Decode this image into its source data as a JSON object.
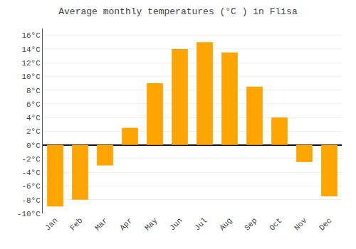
{
  "chart_data": {
    "type": "bar",
    "title": "Average monthly temperatures (°C ) in Flisa",
    "categories": [
      "Jan",
      "Feb",
      "Mar",
      "Apr",
      "May",
      "Jun",
      "Jul",
      "Aug",
      "Sep",
      "Oct",
      "Nov",
      "Dec"
    ],
    "values": [
      -9,
      -8,
      -3,
      2.5,
      9,
      14,
      15,
      13.5,
      8.5,
      4,
      -2.5,
      -7.5
    ],
    "color": "#FFA500",
    "ylim": [
      -10,
      17
    ],
    "yticks": [
      {
        "value": -10,
        "label": "-10°C"
      },
      {
        "value": -8,
        "label": "-8°C"
      },
      {
        "value": -6,
        "label": "-6°C"
      },
      {
        "value": -4,
        "label": "-4°C"
      },
      {
        "value": -2,
        "label": "-2°C"
      },
      {
        "value": 0,
        "label": "0°C"
      },
      {
        "value": 2,
        "label": "2°C"
      },
      {
        "value": 4,
        "label": "4°C"
      },
      {
        "value": 6,
        "label": "6°C"
      },
      {
        "value": 8,
        "label": "8°C"
      },
      {
        "value": 10,
        "label": "10°C"
      },
      {
        "value": 12,
        "label": "12°C"
      },
      {
        "value": 14,
        "label": "14°C"
      },
      {
        "value": 16,
        "label": "16°C"
      }
    ],
    "grid": true
  }
}
